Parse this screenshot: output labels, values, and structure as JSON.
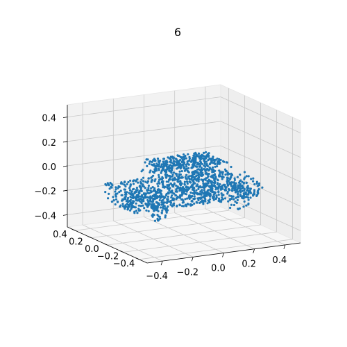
{
  "chart_data": {
    "type": "scatter",
    "projection": "3d",
    "title": "6",
    "point_color": "#1f77b4",
    "pane_color": "#f2f2f2",
    "grid": true,
    "xlim": [
      -0.5,
      0.5
    ],
    "ylim": [
      -0.5,
      0.5
    ],
    "zlim": [
      -0.5,
      0.5
    ],
    "x_ticks": [
      -0.4,
      -0.2,
      0.0,
      0.2,
      0.4
    ],
    "y_ticks": [
      -0.4,
      -0.2,
      0.0,
      0.2,
      0.4
    ],
    "z_ticks": [
      -0.4,
      -0.2,
      0.0,
      0.2,
      0.4
    ],
    "x_tick_labels": [
      "−0.4",
      "−0.2",
      "0.0",
      "0.2",
      "0.4"
    ],
    "y_tick_labels": [
      "−0.4",
      "−0.2",
      "0.0",
      "0.2",
      "0.4"
    ],
    "z_tick_labels": [
      "−0.4",
      "−0.2",
      "0.0",
      "0.2",
      "0.4"
    ],
    "point_count": 1500
  }
}
